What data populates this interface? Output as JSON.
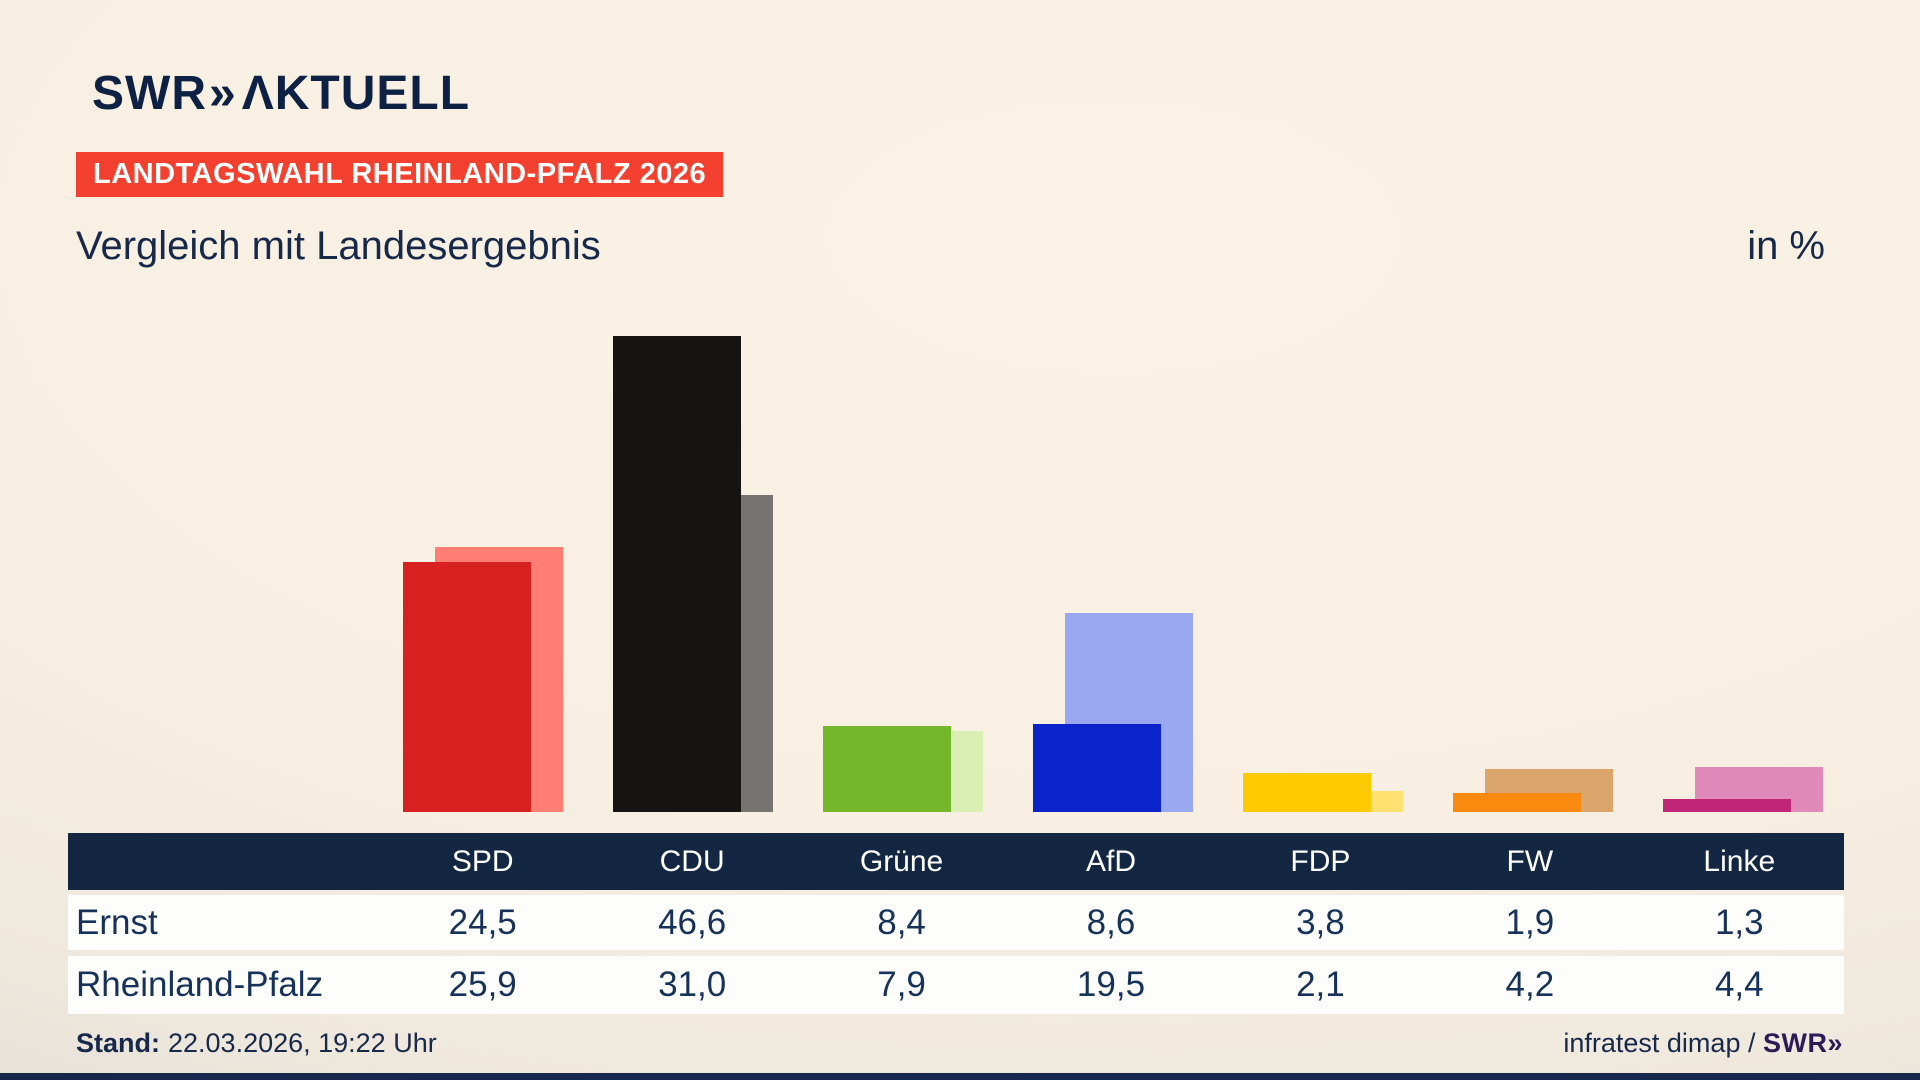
{
  "header": {
    "logo_swr": "SWR",
    "logo_chevron": "»",
    "logo_aktuell": "ΛKTUELL",
    "badge": "LANDTAGSWAHL RHEINLAND-PFALZ 2026",
    "subtitle": "Vergleich mit Landesergebnis",
    "unit_label": "in %"
  },
  "chart_data": {
    "type": "bar",
    "title": "Vergleich mit Landesergebnis",
    "unit": "%",
    "categories": [
      "SPD",
      "CDU",
      "Grüne",
      "AfD",
      "FDP",
      "FW",
      "Linke"
    ],
    "series": [
      {
        "name": "Ernst",
        "values": [
          24.5,
          46.6,
          8.4,
          8.6,
          3.8,
          1.9,
          1.3
        ]
      },
      {
        "name": "Rheinland-Pfalz",
        "values": [
          25.9,
          31.0,
          7.9,
          19.5,
          2.1,
          4.2,
          4.4
        ]
      }
    ],
    "colors_front": [
      "#d92020",
      "#161412",
      "#74b72a",
      "#0b23cb",
      "#ffca00",
      "#fa8a0f",
      "#c02577"
    ],
    "colors_back": [
      "#ff7e73",
      "#767370",
      "#d9efb3",
      "#99a8f1",
      "#ffe071",
      "#dba66b",
      "#e189bb"
    ],
    "ylim": [
      0,
      50
    ],
    "grid": false,
    "legend_position": "table-below"
  },
  "table": {
    "columns": [
      "SPD",
      "CDU",
      "Grüne",
      "AfD",
      "FDP",
      "FW",
      "Linke"
    ],
    "rows": [
      {
        "label": "Ernst",
        "values": [
          "24,5",
          "46,6",
          "8,4",
          "8,6",
          "3,8",
          "1,9",
          "1,3"
        ]
      },
      {
        "label": "Rheinland-Pfalz",
        "values": [
          "25,9",
          "31,0",
          "7,9",
          "19,5",
          "2,1",
          "4,2",
          "4,4"
        ]
      }
    ]
  },
  "footer": {
    "stand_label": "Stand:",
    "stand_value": "22.03.2026, 19:22 Uhr",
    "source_text": "infratest dimap / ",
    "source_logo_swr": "SWR",
    "source_logo_chevron": "»"
  },
  "colors": {
    "background": "#f8efe2",
    "navy": "#132743",
    "badge_red": "#f4402e",
    "row_bg": "#fdfdfc",
    "swr_logo_footer": "#2b1b56"
  }
}
